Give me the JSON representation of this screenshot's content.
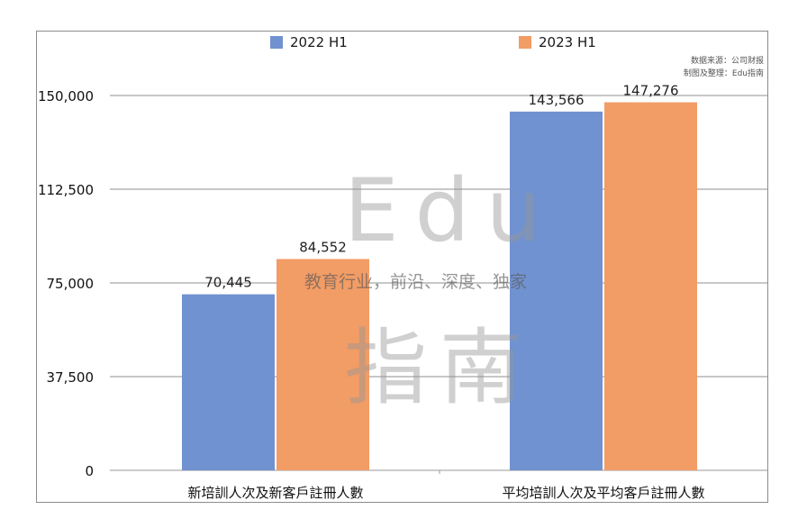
{
  "legend": {
    "a": {
      "label": "2022 H1",
      "color": "#7092d0"
    },
    "b": {
      "label": "2023 H1",
      "color": "#f29c66"
    }
  },
  "source": {
    "line1": "数据来源：公司财报",
    "line2": "制图及整理：Edu指南"
  },
  "watermark": {
    "logo_top": "Edu",
    "logo_bottom": "指南",
    "slogan": "教育行业，前沿、深度、独家"
  },
  "chart_data": {
    "type": "bar",
    "categories": [
      "新培訓人次及新客戶註冊人數",
      "平均培訓人次及平均客戶註冊人數"
    ],
    "series": [
      {
        "name": "2022 H1",
        "values": [
          70445,
          143566
        ],
        "labels": [
          "70,445",
          "143,566"
        ],
        "color": "#7092d0"
      },
      {
        "name": "2023 H1",
        "values": [
          84552,
          147276
        ],
        "labels": [
          "84,552",
          "147,276"
        ],
        "color": "#f29c66"
      }
    ],
    "ylim": [
      0,
      150000
    ],
    "yticks": [
      0,
      37500,
      75000,
      112500,
      150000
    ],
    "ytick_labels": [
      "0",
      "37,500",
      "75,000",
      "112,500",
      "150,000"
    ],
    "grid": true,
    "legend_position": "top"
  }
}
